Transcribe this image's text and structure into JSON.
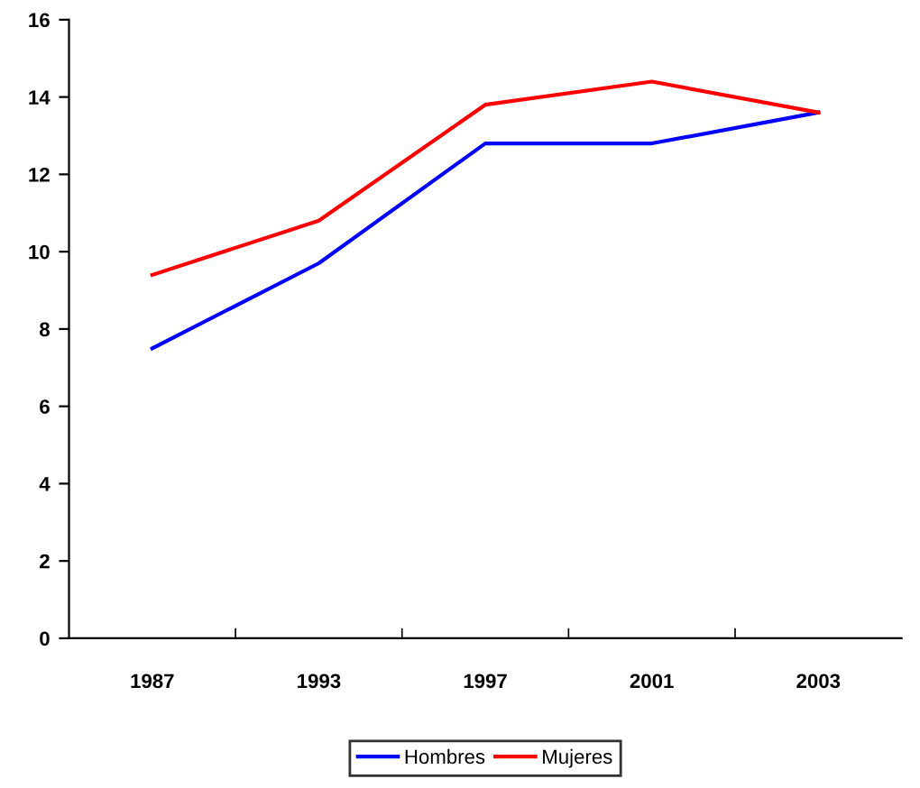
{
  "chart_data": {
    "type": "line",
    "categories": [
      "1987",
      "1993",
      "1997",
      "2001",
      "2003"
    ],
    "series": [
      {
        "name": "Hombres",
        "color": "#0000ff",
        "values": [
          7.5,
          9.7,
          12.8,
          12.8,
          13.6
        ]
      },
      {
        "name": "Mujeres",
        "color": "#ff0000",
        "values": [
          9.4,
          10.8,
          13.8,
          14.4,
          13.6
        ]
      }
    ],
    "ylim": [
      0,
      16
    ],
    "yticks": [
      0,
      2,
      4,
      6,
      8,
      10,
      12,
      14,
      16
    ],
    "grid": false,
    "legend": "bottom",
    "marker": "none",
    "line_style": "solid"
  }
}
